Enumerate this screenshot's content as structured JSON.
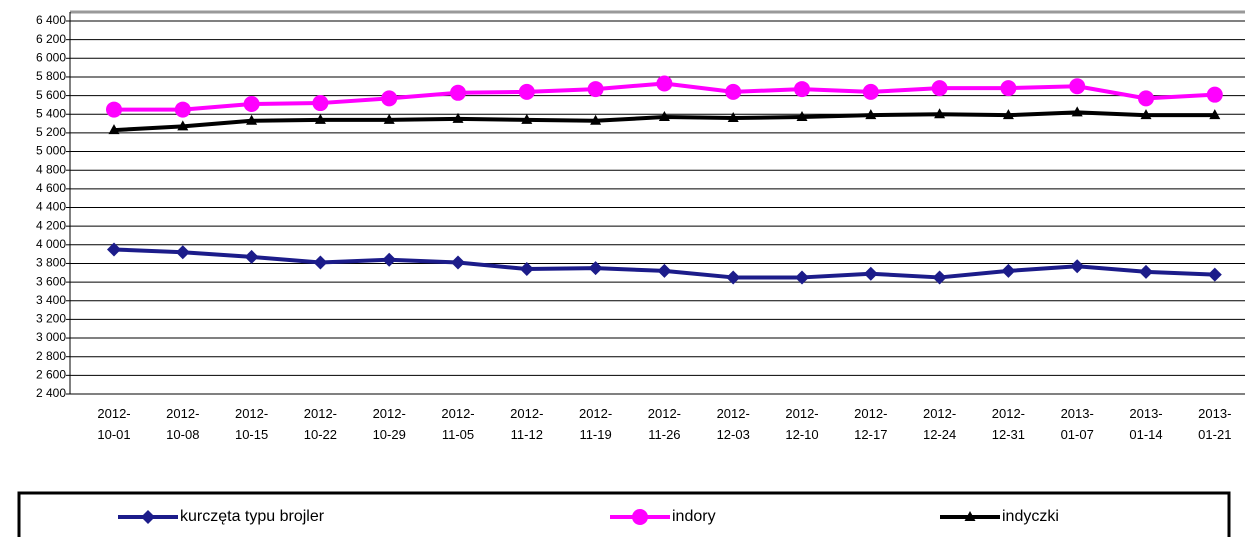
{
  "chart_data": {
    "type": "line",
    "categories": [
      "2012-10-01",
      "2012-10-08",
      "2012-10-15",
      "2012-10-22",
      "2012-10-29",
      "2012-11-05",
      "2012-11-12",
      "2012-11-19",
      "2012-11-26",
      "2012-12-03",
      "2012-12-10",
      "2012-12-17",
      "2012-12-24",
      "2012-12-31",
      "2013-01-07",
      "2013-01-14",
      "2013-01-21"
    ],
    "series": [
      {
        "name": "kurczęta typu brojler",
        "color": "#1c1c8a",
        "marker": "diamond",
        "values": [
          3950,
          3920,
          3870,
          3810,
          3840,
          3810,
          3740,
          3750,
          3720,
          3650,
          3650,
          3690,
          3650,
          3720,
          3770,
          3710,
          3680
        ]
      },
      {
        "name": "indory",
        "color": "#ff00ff",
        "marker": "circle",
        "values": [
          5450,
          5450,
          5510,
          5520,
          5570,
          5630,
          5640,
          5670,
          5730,
          5640,
          5670,
          5640,
          5680,
          5680,
          5700,
          5570,
          5610
        ]
      },
      {
        "name": "indyczki",
        "color": "#000000",
        "marker": "triangle",
        "values": [
          5230,
          5270,
          5330,
          5340,
          5340,
          5350,
          5340,
          5330,
          5370,
          5360,
          5370,
          5390,
          5400,
          5390,
          5420,
          5390,
          5390
        ]
      }
    ],
    "ylim": [
      2400,
      6400
    ],
    "yticks": [
      {
        "value": 2400,
        "label": "2 400"
      },
      {
        "value": 2600,
        "label": "2 600"
      },
      {
        "value": 2800,
        "label": "2 800"
      },
      {
        "value": 3000,
        "label": "3 000"
      },
      {
        "value": 3200,
        "label": "3 200"
      },
      {
        "value": 3400,
        "label": "3 400"
      },
      {
        "value": 3600,
        "label": "3 600"
      },
      {
        "value": 3800,
        "label": "3 800"
      },
      {
        "value": 4000,
        "label": "4 000"
      },
      {
        "value": 4200,
        "label": "4 200"
      },
      {
        "value": 4400,
        "label": "4 400"
      },
      {
        "value": 4600,
        "label": "4 600"
      },
      {
        "value": 4800,
        "label": "4 800"
      },
      {
        "value": 5000,
        "label": "5 000"
      },
      {
        "value": 5200,
        "label": "5 200"
      },
      {
        "value": 5400,
        "label": "5 400"
      },
      {
        "value": 5600,
        "label": "5 600"
      },
      {
        "value": 5800,
        "label": "5 800"
      },
      {
        "value": 6000,
        "label": "6 000"
      },
      {
        "value": 6200,
        "label": "6 200"
      },
      {
        "value": 6400,
        "label": "6 400"
      }
    ],
    "grid": true,
    "legend": "bottom"
  }
}
